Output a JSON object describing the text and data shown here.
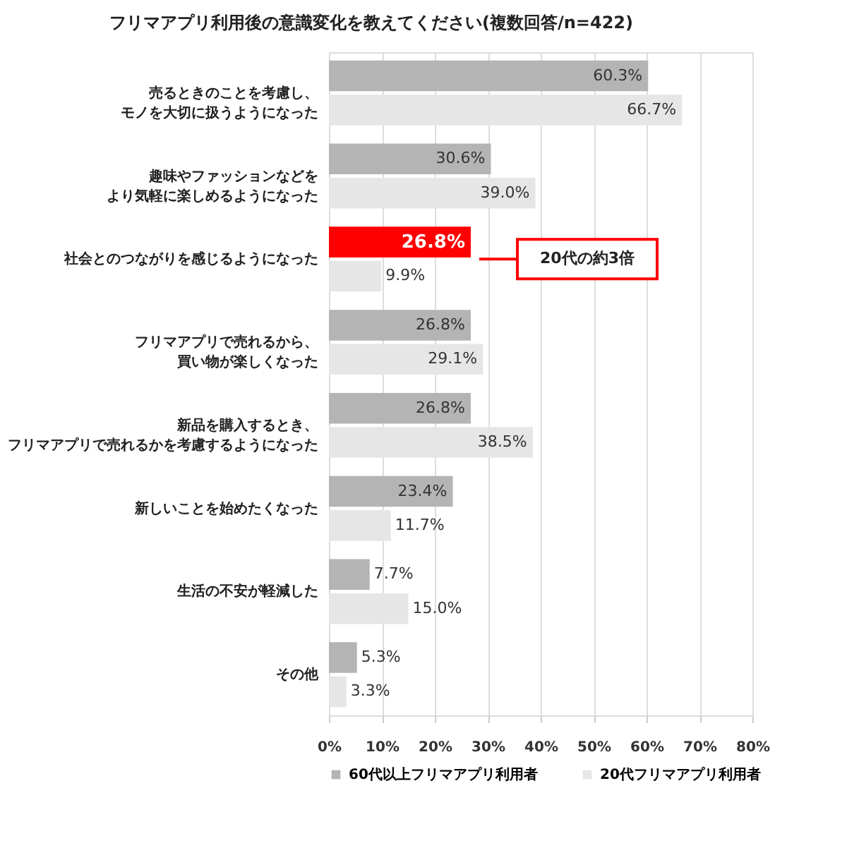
{
  "chart_data": {
    "type": "bar",
    "orientation": "horizontal",
    "title": "フリマアプリ利用後の意識変化を教えてください(複数回答/n=422)",
    "categories": [
      "売るときのことを考慮し、モノを大切に扱うようになった",
      "趣味やファッションなどをより気軽に楽しめるようになった",
      "社会とのつながりを感じるようになった",
      "フリマアプリで売れるから、買い物が楽しくなった",
      "新品を購入するとき、フリマアプリで売れるかを考慮するようになった",
      "新しいことを始めたくなった",
      "生活の不安が軽減した",
      "その他"
    ],
    "series": [
      {
        "name": "60代以上フリマアプリ利用者",
        "color": "#b4b4b4",
        "colors": [
          "#b4b4b4",
          "#b4b4b4",
          "#ff0000",
          "#b4b4b4",
          "#b4b4b4",
          "#b4b4b4",
          "#b4b4b4",
          "#b4b4b4"
        ],
        "values": [
          60.3,
          30.6,
          26.8,
          26.8,
          26.8,
          23.4,
          7.7,
          5.3
        ],
        "value_labels": [
          "60.3%",
          "30.6%",
          "26.8%",
          "26.8%",
          "26.8%",
          "23.4%",
          "7.7%",
          "5.3%"
        ]
      },
      {
        "name": "20代フリマアプリ利用者",
        "color": "#e6e6e6",
        "values": [
          66.7,
          39.0,
          9.9,
          29.1,
          38.5,
          11.7,
          15.0,
          3.3
        ],
        "value_labels": [
          "66.7%",
          "39.0%",
          "9.9%",
          "29.1%",
          "38.5%",
          "11.7%",
          "15.0%",
          "3.3%"
        ]
      }
    ],
    "xlim": [
      0,
      80
    ],
    "xticks": [
      {
        "value": 0,
        "label": "0%"
      },
      {
        "value": 10,
        "label": "10%"
      },
      {
        "value": 20,
        "label": "20%"
      },
      {
        "value": 30,
        "label": "30%"
      },
      {
        "value": 40,
        "label": "40%"
      },
      {
        "value": 50,
        "label": "50%"
      },
      {
        "value": 60,
        "label": "60%"
      },
      {
        "value": 70,
        "label": "70%"
      },
      {
        "value": 80,
        "label": "80%"
      }
    ],
    "grid": "x",
    "legend": "bottom",
    "annotations": [
      "20代の約3倍"
    ]
  }
}
